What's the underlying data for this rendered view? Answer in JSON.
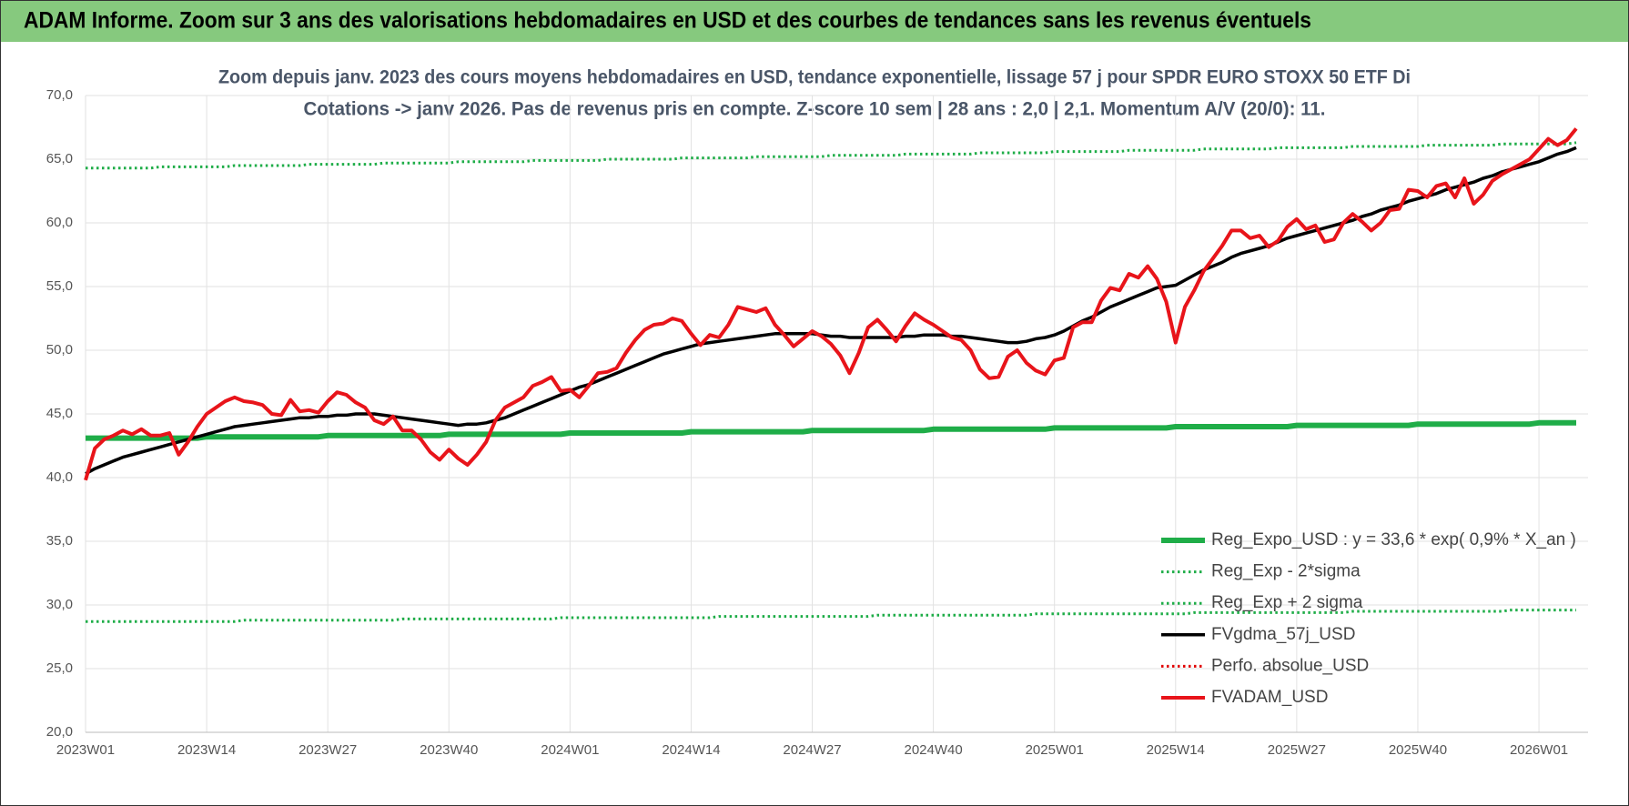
{
  "header": {
    "title": "ADAM Informe. Zoom sur 3 ans des valorisations hebdomadaires en USD et des courbes de tendances sans les revenus éventuels"
  },
  "chart_data": {
    "type": "line",
    "title": "Zoom depuis janv. 2023 des cours moyens hebdomadaires en USD, tendance exponentielle, lissage 57 j pour SPDR EURO STOXX 50 ETF Di",
    "subtitle": "Cotations -> janv 2026. Pas de revenus pris en compte. Z-score 10 sem  | 28 ans : 2,0 | 2,1. Momentum A/V (20/0): 11.",
    "categories": [
      "2023W01",
      null,
      null,
      null,
      null,
      null,
      null,
      null,
      null,
      null,
      null,
      null,
      null,
      "2023W14",
      null,
      null,
      null,
      null,
      null,
      null,
      null,
      null,
      null,
      null,
      null,
      null,
      "2023W27",
      null,
      null,
      null,
      null,
      null,
      null,
      null,
      null,
      null,
      null,
      null,
      null,
      "2023W40",
      null,
      null,
      null,
      null,
      null,
      null,
      null,
      null,
      null,
      null,
      null,
      null,
      "2024W01",
      null,
      null,
      null,
      null,
      null,
      null,
      null,
      null,
      null,
      null,
      null,
      null,
      "2024W14",
      null,
      null,
      null,
      null,
      null,
      null,
      null,
      null,
      null,
      null,
      null,
      null,
      "2024W27",
      null,
      null,
      null,
      null,
      null,
      null,
      null,
      null,
      null,
      null,
      null,
      null,
      "2024W40",
      null,
      null,
      null,
      null,
      null,
      null,
      null,
      null,
      null,
      null,
      null,
      null,
      "2025W01",
      null,
      null,
      null,
      null,
      null,
      null,
      null,
      null,
      null,
      null,
      null,
      null,
      "2025W14",
      null,
      null,
      null,
      null,
      null,
      null,
      null,
      null,
      null,
      null,
      null,
      null,
      "2025W27",
      null,
      null,
      null,
      null,
      null,
      null,
      null,
      null,
      null,
      null,
      null,
      null,
      "2025W40",
      null,
      null,
      null,
      null,
      null,
      null,
      null,
      null,
      null,
      null,
      null,
      null,
      "2026W01",
      null,
      null,
      null,
      null
    ],
    "ylim": [
      20,
      70
    ],
    "yticks": [
      {
        "value": 20,
        "label": "20,0"
      },
      {
        "value": 25,
        "label": "25,0"
      },
      {
        "value": 30,
        "label": "30,0"
      },
      {
        "value": 35,
        "label": "35,0"
      },
      {
        "value": 40,
        "label": "40,0"
      },
      {
        "value": 45,
        "label": "45,0"
      },
      {
        "value": 50,
        "label": "50,0"
      },
      {
        "value": 55,
        "label": "55,0"
      },
      {
        "value": 60,
        "label": "60,0"
      },
      {
        "value": 65,
        "label": "65,0"
      },
      {
        "value": 70,
        "label": "70,0"
      }
    ],
    "grid": true,
    "legend": "bottom-right",
    "series": [
      {
        "name": "Reg_Expo_USD : y = 33,6 * exp( 0,9% *  X_an )",
        "color": "#1fad48",
        "style": "thick",
        "values": [
          43.1,
          43.1,
          43.1,
          43.1,
          43.1,
          43.1,
          43.1,
          43.1,
          43.1,
          43.1,
          43.1,
          43.1,
          43.1,
          43.2,
          43.2,
          43.2,
          43.2,
          43.2,
          43.2,
          43.2,
          43.2,
          43.2,
          43.2,
          43.2,
          43.2,
          43.2,
          43.3,
          43.3,
          43.3,
          43.3,
          43.3,
          43.3,
          43.3,
          43.3,
          43.3,
          43.3,
          43.3,
          43.3,
          43.3,
          43.4,
          43.4,
          43.4,
          43.4,
          43.4,
          43.4,
          43.4,
          43.4,
          43.4,
          43.4,
          43.4,
          43.4,
          43.4,
          43.5,
          43.5,
          43.5,
          43.5,
          43.5,
          43.5,
          43.5,
          43.5,
          43.5,
          43.5,
          43.5,
          43.5,
          43.5,
          43.6,
          43.6,
          43.6,
          43.6,
          43.6,
          43.6,
          43.6,
          43.6,
          43.6,
          43.6,
          43.6,
          43.6,
          43.6,
          43.7,
          43.7,
          43.7,
          43.7,
          43.7,
          43.7,
          43.7,
          43.7,
          43.7,
          43.7,
          43.7,
          43.7,
          43.7,
          43.8,
          43.8,
          43.8,
          43.8,
          43.8,
          43.8,
          43.8,
          43.8,
          43.8,
          43.8,
          43.8,
          43.8,
          43.8,
          43.9,
          43.9,
          43.9,
          43.9,
          43.9,
          43.9,
          43.9,
          43.9,
          43.9,
          43.9,
          43.9,
          43.9,
          43.9,
          44,
          44,
          44,
          44,
          44,
          44,
          44,
          44,
          44,
          44,
          44,
          44,
          44,
          44.1,
          44.1,
          44.1,
          44.1,
          44.1,
          44.1,
          44.1,
          44.1,
          44.1,
          44.1,
          44.1,
          44.1,
          44.1,
          44.2,
          44.2,
          44.2,
          44.2,
          44.2,
          44.2,
          44.2,
          44.2,
          44.2,
          44.2,
          44.2,
          44.2,
          44.2,
          44.3,
          44.3,
          44.3,
          44.3,
          44.3
        ]
      },
      {
        "name": "Reg_Exp - 2*sigma",
        "color": "#1fad48",
        "style": "dotted",
        "values": [
          28.7,
          28.7,
          28.7,
          28.7,
          28.7,
          28.7,
          28.7,
          28.7,
          28.7,
          28.7,
          28.7,
          28.7,
          28.7,
          28.7,
          28.7,
          28.7,
          28.7,
          28.8,
          28.8,
          28.8,
          28.8,
          28.8,
          28.8,
          28.8,
          28.8,
          28.8,
          28.8,
          28.8,
          28.8,
          28.8,
          28.8,
          28.8,
          28.8,
          28.8,
          28.9,
          28.9,
          28.9,
          28.9,
          28.9,
          28.9,
          28.9,
          28.9,
          28.9,
          28.9,
          28.9,
          28.9,
          28.9,
          28.9,
          28.9,
          28.9,
          28.9,
          29,
          29,
          29,
          29,
          29,
          29,
          29,
          29,
          29,
          29,
          29,
          29,
          29,
          29,
          29,
          29,
          29,
          29.1,
          29.1,
          29.1,
          29.1,
          29.1,
          29.1,
          29.1,
          29.1,
          29.1,
          29.1,
          29.1,
          29.1,
          29.1,
          29.1,
          29.1,
          29.1,
          29.1,
          29.2,
          29.2,
          29.2,
          29.2,
          29.2,
          29.2,
          29.2,
          29.2,
          29.2,
          29.2,
          29.2,
          29.2,
          29.2,
          29.2,
          29.2,
          29.2,
          29.2,
          29.3,
          29.3,
          29.3,
          29.3,
          29.3,
          29.3,
          29.3,
          29.3,
          29.3,
          29.3,
          29.3,
          29.3,
          29.3,
          29.3,
          29.3,
          29.3,
          29.3,
          29.4,
          29.4,
          29.4,
          29.4,
          29.4,
          29.4,
          29.4,
          29.4,
          29.4,
          29.4,
          29.4,
          29.4,
          29.4,
          29.4,
          29.4,
          29.4,
          29.4,
          29.5,
          29.5,
          29.5,
          29.5,
          29.5,
          29.5,
          29.5,
          29.5,
          29.5,
          29.5,
          29.5,
          29.5,
          29.5,
          29.5,
          29.5,
          29.5,
          29.5,
          29.6,
          29.6,
          29.6,
          29.6,
          29.6,
          29.6,
          29.6,
          29.6
        ]
      },
      {
        "name": "Reg_Exp + 2 sigma",
        "color": "#1fad48",
        "style": "dotted",
        "values": [
          64.3,
          64.3,
          64.3,
          64.3,
          64.3,
          64.3,
          64.3,
          64.3,
          64.4,
          64.4,
          64.4,
          64.4,
          64.4,
          64.4,
          64.4,
          64.4,
          64.5,
          64.5,
          64.5,
          64.5,
          64.5,
          64.5,
          64.5,
          64.5,
          64.6,
          64.6,
          64.6,
          64.6,
          64.6,
          64.6,
          64.6,
          64.6,
          64.7,
          64.7,
          64.7,
          64.7,
          64.7,
          64.7,
          64.7,
          64.7,
          64.8,
          64.8,
          64.8,
          64.8,
          64.8,
          64.8,
          64.8,
          64.8,
          64.9,
          64.9,
          64.9,
          64.9,
          64.9,
          64.9,
          64.9,
          64.9,
          65,
          65,
          65,
          65,
          65,
          65,
          65,
          65,
          65.1,
          65.1,
          65.1,
          65.1,
          65.1,
          65.1,
          65.1,
          65.1,
          65.2,
          65.2,
          65.2,
          65.2,
          65.2,
          65.2,
          65.2,
          65.2,
          65.3,
          65.3,
          65.3,
          65.3,
          65.3,
          65.3,
          65.3,
          65.3,
          65.4,
          65.4,
          65.4,
          65.4,
          65.4,
          65.4,
          65.4,
          65.4,
          65.5,
          65.5,
          65.5,
          65.5,
          65.5,
          65.5,
          65.5,
          65.5,
          65.6,
          65.6,
          65.6,
          65.6,
          65.6,
          65.6,
          65.6,
          65.6,
          65.7,
          65.7,
          65.7,
          65.7,
          65.7,
          65.7,
          65.7,
          65.7,
          65.8,
          65.8,
          65.8,
          65.8,
          65.8,
          65.8,
          65.8,
          65.8,
          65.9,
          65.9,
          65.9,
          65.9,
          65.9,
          65.9,
          65.9,
          65.9,
          66,
          66,
          66,
          66,
          66,
          66,
          66,
          66,
          66.1,
          66.1,
          66.1,
          66.1,
          66.1,
          66.1,
          66.1,
          66.1,
          66.2,
          66.2,
          66.2,
          66.2,
          66.2,
          66.2,
          66.2,
          66.2,
          66.3
        ]
      },
      {
        "name": "FVgdma_57j_USD",
        "color": "#000000",
        "style": "solid",
        "values": [
          40.3,
          40.7,
          41.0,
          41.3,
          41.6,
          41.8,
          42.0,
          42.2,
          42.4,
          42.6,
          42.8,
          43.0,
          43.2,
          43.4,
          43.6,
          43.8,
          44.0,
          44.1,
          44.2,
          44.3,
          44.4,
          44.5,
          44.6,
          44.7,
          44.7,
          44.8,
          44.8,
          44.9,
          44.9,
          45.0,
          45.0,
          45.0,
          44.9,
          44.8,
          44.7,
          44.6,
          44.5,
          44.4,
          44.3,
          44.2,
          44.1,
          44.2,
          44.2,
          44.3,
          44.5,
          44.7,
          45.0,
          45.3,
          45.6,
          45.9,
          46.2,
          46.5,
          46.8,
          47.1,
          47.3,
          47.6,
          47.9,
          48.2,
          48.5,
          48.8,
          49.1,
          49.4,
          49.7,
          49.9,
          50.1,
          50.3,
          50.5,
          50.6,
          50.7,
          50.8,
          50.9,
          51.0,
          51.1,
          51.2,
          51.3,
          51.3,
          51.3,
          51.3,
          51.3,
          51.2,
          51.1,
          51.1,
          51.0,
          51.0,
          51.0,
          51.0,
          51.0,
          51.0,
          51.1,
          51.1,
          51.2,
          51.2,
          51.2,
          51.1,
          51.1,
          51.0,
          50.9,
          50.8,
          50.7,
          50.6,
          50.6,
          50.7,
          50.9,
          51.0,
          51.2,
          51.5,
          51.9,
          52.3,
          52.6,
          53.0,
          53.4,
          53.7,
          54.0,
          54.3,
          54.6,
          54.9,
          55.0,
          55.1,
          55.5,
          55.9,
          56.3,
          56.6,
          56.9,
          57.3,
          57.6,
          57.8,
          58.0,
          58.2,
          58.5,
          58.8,
          59.0,
          59.2,
          59.4,
          59.6,
          59.8,
          60.0,
          60.2,
          60.5,
          60.7,
          61.0,
          61.2,
          61.4,
          61.7,
          61.9,
          62.1,
          62.3,
          62.6,
          62.8,
          63.0,
          63.2,
          63.5,
          63.7,
          64.0,
          64.2,
          64.4,
          64.6,
          64.8,
          65.1,
          65.4,
          65.6,
          65.9
        ]
      },
      {
        "name": "Perfo. absolue_USD",
        "color": "#e00000",
        "style": "dotted",
        "values": [
          null,
          null,
          null,
          null,
          null,
          null,
          null,
          null,
          null,
          null,
          null,
          null,
          null,
          null,
          null,
          null,
          null,
          null,
          null,
          null,
          null,
          null,
          null,
          null,
          null,
          null,
          null,
          null,
          null,
          null,
          null,
          null,
          null,
          null,
          null,
          null,
          null,
          null,
          null,
          null,
          null,
          null,
          null,
          null,
          null,
          null,
          null,
          null,
          null,
          null,
          null,
          null,
          null,
          null,
          null,
          null,
          null,
          null,
          null,
          null,
          null,
          null,
          null,
          null,
          null,
          null,
          null,
          null,
          null,
          null,
          null,
          null,
          null,
          null,
          null,
          null,
          null,
          null,
          null,
          null,
          null,
          null,
          null,
          null,
          null,
          null,
          null,
          null,
          null,
          null,
          null,
          null,
          null,
          null,
          null,
          null,
          null,
          null,
          null,
          null,
          null,
          null,
          null,
          null,
          null,
          null,
          null,
          null,
          null,
          null,
          null,
          null,
          null,
          null,
          null,
          null,
          null,
          null,
          null,
          null,
          null,
          null,
          null,
          null,
          null,
          null,
          null,
          null,
          null,
          null,
          null,
          null,
          null,
          null,
          null,
          null,
          null,
          null,
          null,
          null,
          null,
          null,
          null,
          null,
          null,
          null,
          null,
          null,
          null,
          null,
          null,
          null,
          null,
          null,
          null,
          null,
          null,
          null,
          null,
          null,
          null
        ]
      },
      {
        "name": "FVADAM_USD",
        "color": "#e8141a",
        "style": "thick-red",
        "values": [
          39.8,
          42.3,
          43.0,
          43.3,
          43.7,
          43.4,
          43.8,
          43.3,
          43.3,
          43.5,
          41.8,
          42.8,
          44.0,
          45.0,
          45.5,
          46.0,
          46.3,
          46.0,
          45.9,
          45.7,
          45.0,
          44.9,
          46.1,
          45.2,
          45.3,
          45.1,
          46.0,
          46.7,
          46.5,
          45.9,
          45.5,
          44.5,
          44.2,
          44.8,
          43.7,
          43.7,
          43.0,
          42.0,
          41.4,
          42.2,
          41.5,
          41.0,
          41.8,
          42.8,
          44.5,
          45.5,
          45.9,
          46.3,
          47.2,
          47.5,
          47.9,
          46.8,
          46.9,
          46.3,
          47.2,
          48.2,
          48.3,
          48.6,
          49.8,
          50.8,
          51.6,
          52.0,
          52.1,
          52.5,
          52.3,
          51.3,
          50.4,
          51.2,
          51.0,
          52.0,
          53.4,
          53.2,
          53.0,
          53.3,
          52.0,
          51.2,
          50.3,
          50.9,
          51.5,
          51.1,
          50.5,
          49.6,
          48.2,
          49.8,
          51.8,
          52.4,
          51.6,
          50.7,
          51.9,
          52.9,
          52.4,
          52.0,
          51.5,
          51.0,
          50.8,
          50.0,
          48.5,
          47.8,
          47.9,
          49.5,
          50.0,
          49.0,
          48.4,
          48.1,
          49.2,
          49.4,
          51.8,
          52.2,
          52.2,
          53.9,
          54.9,
          54.7,
          56.0,
          55.7,
          56.6,
          55.6,
          53.8,
          50.6,
          53.4,
          54.7,
          56.2,
          57.2,
          58.2,
          59.4,
          59.4,
          58.8,
          59.0,
          58.1,
          58.6,
          59.7,
          60.3,
          59.5,
          59.8,
          58.5,
          58.7,
          60.0,
          60.7,
          60.1,
          59.4,
          60.0,
          61.0,
          61.1,
          62.6,
          62.5,
          62.0,
          62.9,
          63.1,
          62.0,
          63.5,
          61.5,
          62.2,
          63.3,
          63.8,
          64.2,
          64.6,
          65.0,
          65.8,
          66.6,
          66.1,
          66.5,
          67.4
        ]
      }
    ]
  }
}
